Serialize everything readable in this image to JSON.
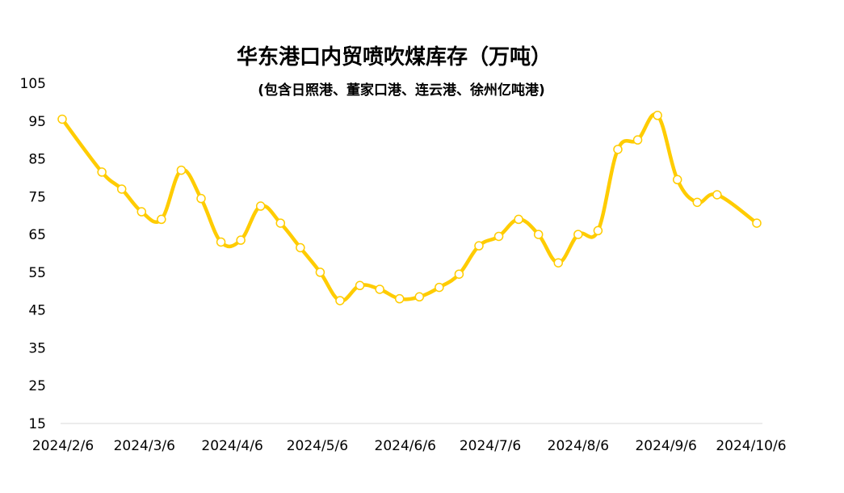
{
  "chart_data": {
    "type": "line",
    "title": "华东港口内贸喷吹煤库存（万吨）",
    "subtitle": "(包含日照港、董家口港、连云港、徐州亿吨港)",
    "xlabel": "",
    "ylabel": "",
    "ylim": [
      15,
      105
    ],
    "yticks": [
      "15",
      "25",
      "35",
      "45",
      "55",
      "65",
      "75",
      "85",
      "95",
      "105"
    ],
    "xlim": [
      "2024-02-06",
      "2024-10-10"
    ],
    "xticks": [
      {
        "date": "2024-02-06",
        "label": "2024/2/6"
      },
      {
        "date": "2024-03-06",
        "label": "2024/3/6"
      },
      {
        "date": "2024-04-06",
        "label": "2024/4/6"
      },
      {
        "date": "2024-05-06",
        "label": "2024/5/6"
      },
      {
        "date": "2024-06-06",
        "label": "2024/6/6"
      },
      {
        "date": "2024-07-06",
        "label": "2024/7/6"
      },
      {
        "date": "2024-08-06",
        "label": "2024/8/6"
      },
      {
        "date": "2024-09-06",
        "label": "2024/9/6"
      },
      {
        "date": "2024-10-06",
        "label": "2024/10/6"
      }
    ],
    "grid": false,
    "legend": "none",
    "color": "#FFCC00",
    "series": [
      {
        "name": "",
        "x": [
          "2024-02-06",
          "2024-02-20",
          "2024-02-27",
          "2024-03-05",
          "2024-03-12",
          "2024-03-19",
          "2024-03-26",
          "2024-04-02",
          "2024-04-09",
          "2024-04-16",
          "2024-04-23",
          "2024-04-30",
          "2024-05-07",
          "2024-05-14",
          "2024-05-21",
          "2024-05-28",
          "2024-06-04",
          "2024-06-11",
          "2024-06-18",
          "2024-06-25",
          "2024-07-02",
          "2024-07-09",
          "2024-07-16",
          "2024-07-23",
          "2024-07-30",
          "2024-08-06",
          "2024-08-13",
          "2024-08-20",
          "2024-08-27",
          "2024-09-03",
          "2024-09-10",
          "2024-09-17",
          "2024-09-24",
          "2024-10-08"
        ],
        "values": [
          95.5,
          81.5,
          77.0,
          71.0,
          69.0,
          82.0,
          74.5,
          63.0,
          63.5,
          72.5,
          68.0,
          61.5,
          55.0,
          47.5,
          51.5,
          50.5,
          48.0,
          48.5,
          51.0,
          54.5,
          62.0,
          64.5,
          69.0,
          65.0,
          57.5,
          65.0,
          66.0,
          87.5,
          90.0,
          96.5,
          79.5,
          73.5,
          75.5,
          68.0
        ]
      }
    ]
  }
}
